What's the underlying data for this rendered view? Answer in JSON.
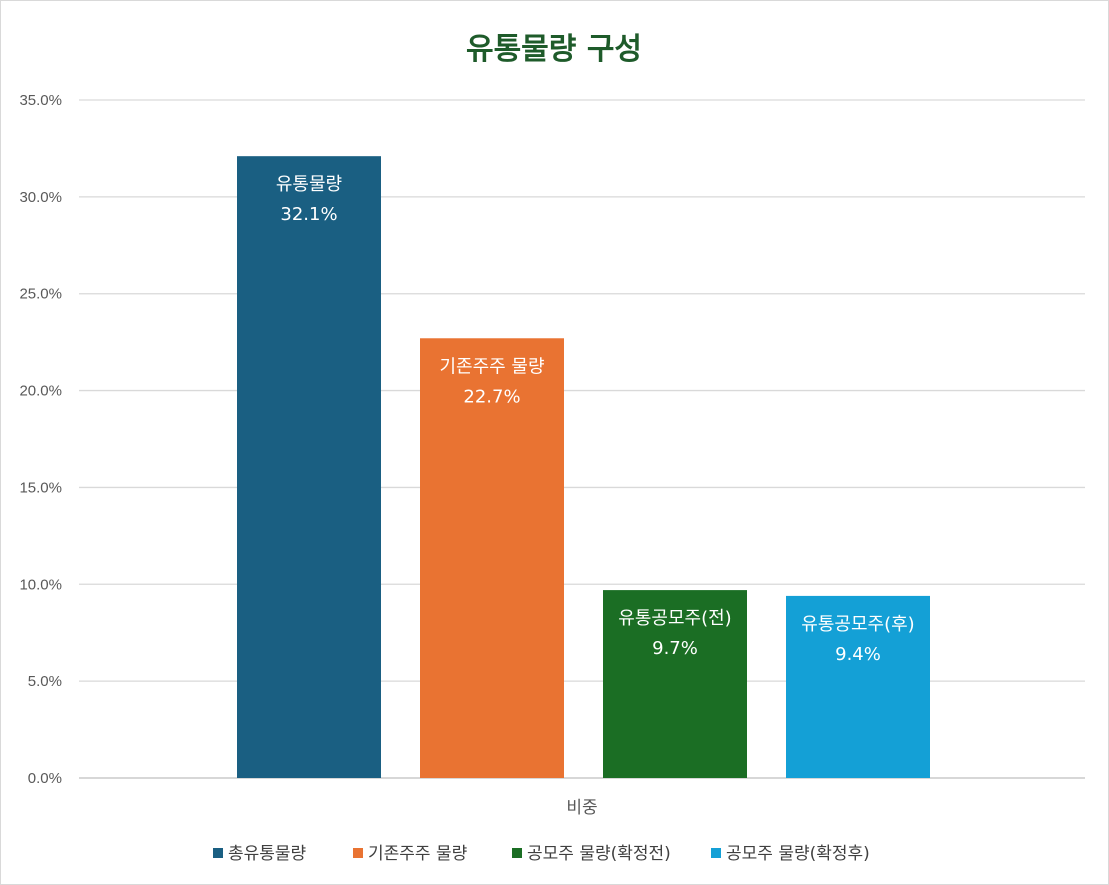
{
  "chart_data": {
    "type": "bar",
    "title": "유통물량 구성",
    "categories": [
      "비중"
    ],
    "series": [
      {
        "name": "총유통물량",
        "values": [
          32.1
        ],
        "color": "#1a5f82",
        "label": "유통물량",
        "value_label": "32.1%"
      },
      {
        "name": "기존주주 물량",
        "values": [
          22.7
        ],
        "color": "#e97332",
        "label": "기존주주 물량",
        "value_label": "22.7%"
      },
      {
        "name": "공모주 물량(확정전)",
        "values": [
          9.7
        ],
        "color": "#1b6e24",
        "label": "유통공모주(전)",
        "value_label": "9.7%"
      },
      {
        "name": "공모주 물량(확정후)",
        "values": [
          9.4
        ],
        "color": "#14a0d6",
        "label": "유통공모주(후)",
        "value_label": "9.4%"
      }
    ],
    "y_ticks": [
      "0.0%",
      "5.0%",
      "10.0%",
      "15.0%",
      "20.0%",
      "25.0%",
      "30.0%",
      "35.0%"
    ],
    "ylim": [
      0,
      35
    ],
    "grid": true,
    "legend_position": "bottom",
    "xlabel": "",
    "ylabel": ""
  }
}
